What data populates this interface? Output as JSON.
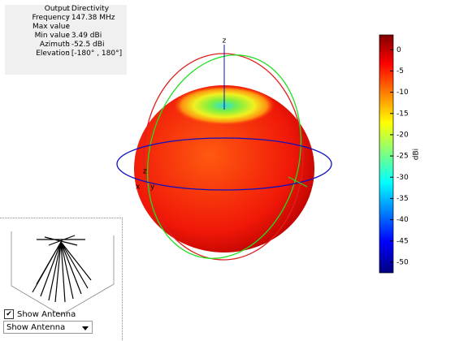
{
  "info": {
    "rows": [
      {
        "label": "Output",
        "value": "Directivity"
      },
      {
        "label": "Frequency",
        "value": "147.38 MHz"
      },
      {
        "label": "Max value"
      },
      {
        "label": "Min value",
        "value": "3.49 dBi"
      },
      {
        "label": "Azimuth",
        "value": "-52.5 dBi"
      },
      {
        "label": "Elevation",
        "value": "[-180° , 180°]"
      }
    ]
  },
  "axes": {
    "z": "z",
    "small": [
      "z",
      "x",
      "y"
    ]
  },
  "colorbar": {
    "label": "dBi",
    "lim": [
      -52.5,
      3.49
    ],
    "ticks": [
      0,
      -5,
      -10,
      -15,
      -20,
      -25,
      -30,
      -35,
      -40,
      -45,
      -50
    ]
  },
  "controls": {
    "checkbox": "Show Antenna",
    "dropdown": "Show Antenna"
  }
}
